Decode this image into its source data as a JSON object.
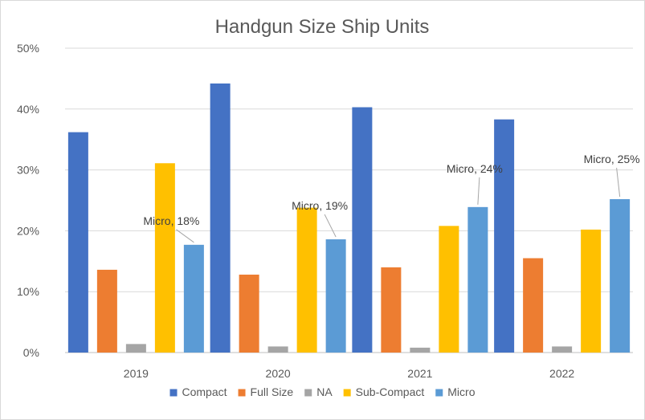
{
  "chart_data": {
    "type": "bar",
    "title": "Handgun Size Ship Units",
    "xlabel": "",
    "ylabel": "",
    "categories": [
      "2019",
      "2020",
      "2021",
      "2022"
    ],
    "ylim": [
      0,
      50
    ],
    "yticks": [
      0,
      10,
      20,
      30,
      40,
      50
    ],
    "ytick_labels": [
      "0%",
      "10%",
      "20%",
      "30%",
      "40%",
      "50%"
    ],
    "grid": true,
    "legend_position": "bottom",
    "series": [
      {
        "name": "Compact",
        "color": "#4472c4",
        "values": [
          36.2,
          44.2,
          40.3,
          38.3
        ]
      },
      {
        "name": "Full Size",
        "color": "#ed7d31",
        "values": [
          13.6,
          12.8,
          14.0,
          15.5
        ]
      },
      {
        "name": "NA",
        "color": "#a5a5a5",
        "values": [
          1.4,
          1.0,
          0.8,
          1.0
        ]
      },
      {
        "name": "Sub-Compact",
        "color": "#ffc000",
        "values": [
          31.1,
          23.8,
          20.8,
          20.2
        ]
      },
      {
        "name": "Micro",
        "color": "#5b9bd5",
        "values": [
          17.7,
          18.6,
          23.9,
          25.2
        ]
      }
    ],
    "annotations": [
      {
        "series": "Micro",
        "category": "2019",
        "text": "Micro, 18%"
      },
      {
        "series": "Micro",
        "category": "2020",
        "text": "Micro, 19%"
      },
      {
        "series": "Micro",
        "category": "2021",
        "text": "Micro, 24%"
      },
      {
        "series": "Micro",
        "category": "2022",
        "text": "Micro, 25%"
      }
    ]
  }
}
